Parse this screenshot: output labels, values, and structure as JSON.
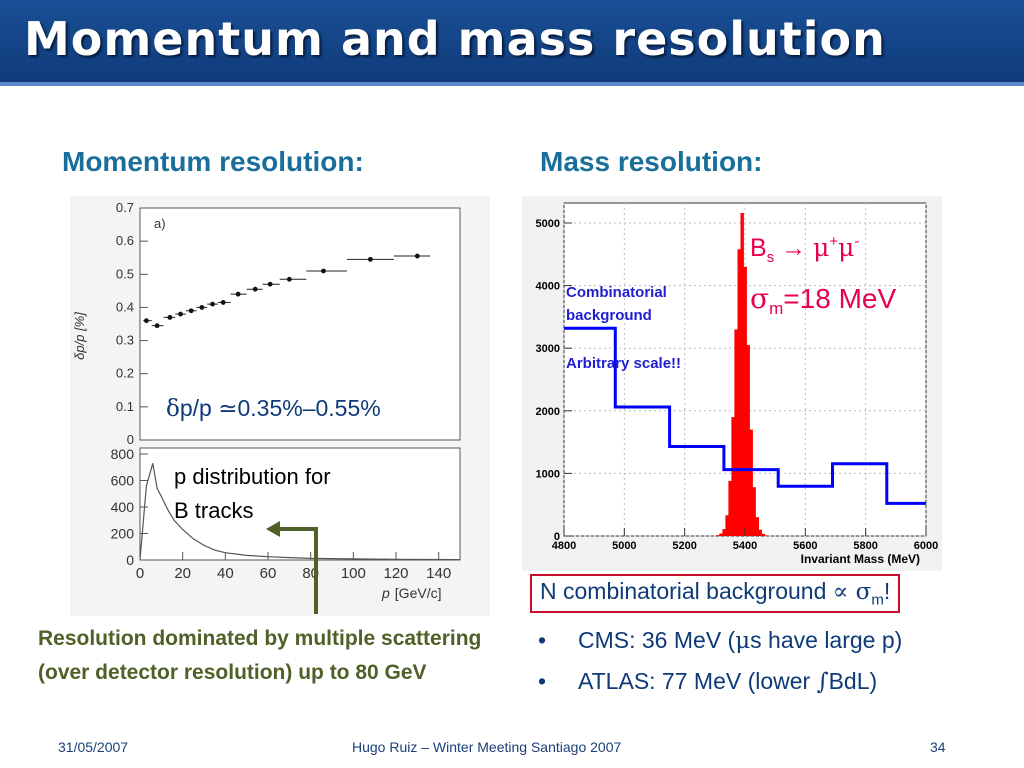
{
  "slide": {
    "title": "Momentum and mass resolution",
    "left_heading": "Momentum resolution:",
    "right_heading": "Mass resolution:"
  },
  "plot_resolution": {
    "panel_label": "a)",
    "ylabel": "δp/p [%]",
    "yticks": [
      "0.7",
      "0.6",
      "0.5",
      "0.4",
      "0.3",
      "0.2",
      "0.1",
      "0"
    ],
    "annotation_delta": "δ",
    "annotation_rest": "p/p ≃0.35%–0.55%",
    "chart_data": {
      "type": "scatter",
      "ylabel": "δp/p [%]",
      "ylim": [
        0,
        0.7
      ],
      "xlim": [
        0,
        150
      ],
      "points": [
        {
          "x": 3,
          "y": 0.36
        },
        {
          "x": 8,
          "y": 0.345
        },
        {
          "x": 14,
          "y": 0.37
        },
        {
          "x": 19,
          "y": 0.38
        },
        {
          "x": 24,
          "y": 0.39
        },
        {
          "x": 29,
          "y": 0.4
        },
        {
          "x": 34,
          "y": 0.41
        },
        {
          "x": 39,
          "y": 0.415
        },
        {
          "x": 46,
          "y": 0.44
        },
        {
          "x": 54,
          "y": 0.455
        },
        {
          "x": 61,
          "y": 0.47
        },
        {
          "x": 70,
          "y": 0.485
        },
        {
          "x": 86,
          "y": 0.51
        },
        {
          "x": 108,
          "y": 0.545
        },
        {
          "x": 130,
          "y": 0.555
        }
      ]
    }
  },
  "plot_pdist": {
    "yticks": [
      "800",
      "600",
      "400",
      "200",
      "0"
    ],
    "xticks": [
      "0",
      "20",
      "40",
      "60",
      "80",
      "100",
      "120",
      "140"
    ],
    "xlabel_italic": "p",
    "xlabel_unit": "[GeV/c]",
    "label_line1": "p distribution for",
    "label_line2": "B tracks",
    "chart_data": {
      "type": "area",
      "xlabel": "p [GeV/c]",
      "xlim": [
        0,
        150
      ],
      "ylim": [
        0,
        800
      ],
      "x": [
        0,
        3,
        6,
        8,
        10,
        13,
        16,
        20,
        25,
        30,
        35,
        40,
        50,
        60,
        70,
        80,
        100,
        120,
        150
      ],
      "values": [
        0,
        560,
        730,
        540,
        480,
        380,
        300,
        230,
        160,
        110,
        75,
        55,
        35,
        25,
        18,
        12,
        8,
        5,
        3
      ]
    }
  },
  "plot_mass": {
    "yticks": [
      "5000",
      "4000",
      "3000",
      "2000",
      "1000",
      "0"
    ],
    "xticks": [
      "4800",
      "5000",
      "5200",
      "5400",
      "5600",
      "5800",
      "6000"
    ],
    "xlabel": "Invariant Mass (MeV)",
    "bkg_label_1": "Combinatorial",
    "bkg_label_2": "background",
    "arbitrary": "Arbitrary scale!!",
    "bs_B": "B",
    "bs_sub": "s",
    "bs_arrow": " → ",
    "bs_mu1": "μ",
    "bs_plus": "+",
    "bs_mu2": "μ",
    "bs_minus": "-",
    "sigma_sym": "σ",
    "sigma_sub": "m",
    "sigma_val": "=18 MeV",
    "colors": {
      "signal": "#ff0000",
      "background": "#0000ff"
    },
    "chart_data": {
      "type": "bar",
      "xlabel": "Invariant Mass (MeV)",
      "xlim": [
        4800,
        6000
      ],
      "ylim": [
        0,
        5000
      ],
      "series": [
        {
          "name": "Combinatorial background",
          "edges": [
            4800,
            4970,
            5150,
            5330,
            5510,
            5690,
            5870,
            6000
          ],
          "values": [
            3320,
            2060,
            1430,
            1060,
            795,
            1155,
            520
          ]
        },
        {
          "name": "Bs → μ+μ-",
          "x": [
            5310,
            5320,
            5330,
            5340,
            5350,
            5360,
            5370,
            5380,
            5390,
            5400,
            5410,
            5420,
            5430,
            5440,
            5450,
            5460,
            5470
          ],
          "values": [
            15,
            40,
            110,
            330,
            880,
            1900,
            3300,
            4580,
            5160,
            4300,
            3050,
            1700,
            780,
            300,
            100,
            35,
            10
          ]
        }
      ]
    }
  },
  "notes": {
    "green_text": "Resolution dominated by multiple scattering (over detector resolution) up to 80 GeV",
    "box_pre": "N combinatorial background ",
    "box_prop": "∝",
    "box_sigma": " σ",
    "box_sub": "m",
    "box_bang": "!",
    "bullet1_pre": "CMS: 36 MeV (",
    "bullet1_mu": "μ",
    "bullet1_post": "s have large p)",
    "bullet2_pre": "ATLAS: 77 MeV (lower ",
    "bullet2_int": "∫",
    "bullet2_post": "BdL)",
    "bullet_marker": "•"
  },
  "footer": {
    "date": "31/05/2007",
    "center": "Hugo Ruiz – Winter Meeting Santiago 2007",
    "page": "34"
  }
}
